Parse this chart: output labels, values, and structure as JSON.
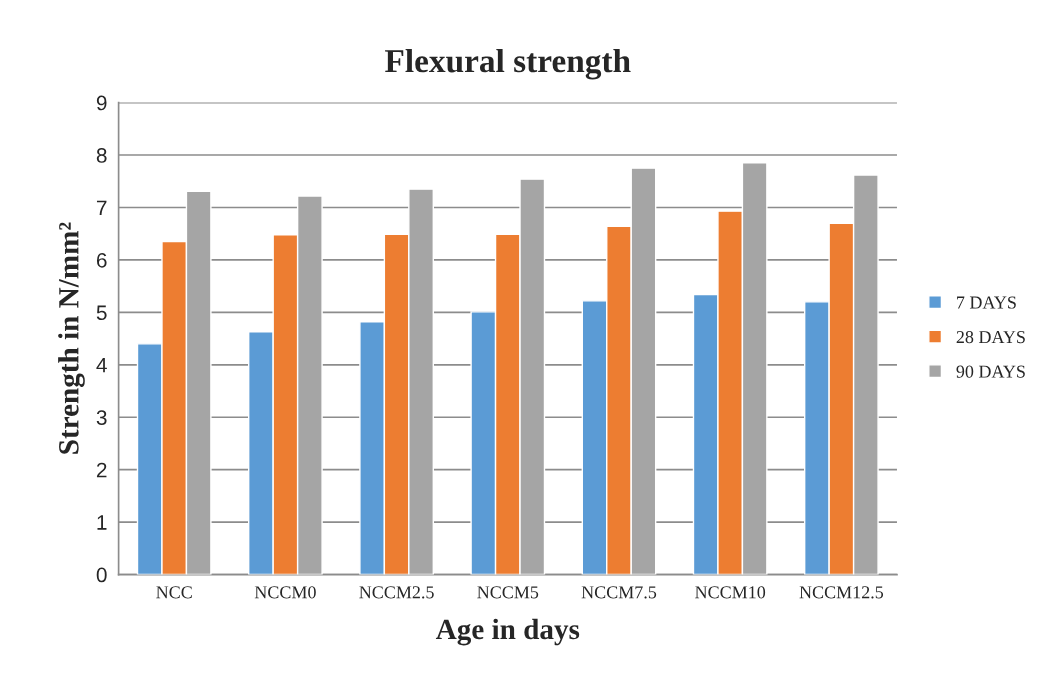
{
  "chart_data": {
    "type": "bar",
    "title": "Flexural strength",
    "xlabel": "Age in days",
    "ylabel": "Strength in N/mm²",
    "categories": [
      "NCC",
      "NCCM0",
      "NCCM2.5",
      "NCCM5",
      "NCCM7.5",
      "NCCM10",
      "NCCM12.5"
    ],
    "series": [
      {
        "name": "7 DAYS",
        "color": "#5b9bd5",
        "values": [
          4.4,
          4.63,
          4.82,
          5.01,
          5.22,
          5.34,
          5.2
        ]
      },
      {
        "name": "28 DAYS",
        "color": "#ed7d31",
        "values": [
          6.35,
          6.48,
          6.49,
          6.49,
          6.64,
          6.93,
          6.7
        ]
      },
      {
        "name": "90 DAYS",
        "color": "#a5a5a5",
        "values": [
          7.31,
          7.22,
          7.35,
          7.54,
          7.75,
          7.85,
          7.62
        ]
      }
    ],
    "ylim": [
      0,
      9
    ],
    "yticks": [
      0,
      1,
      2,
      3,
      4,
      5,
      6,
      7,
      8,
      9
    ],
    "grid": "y",
    "legend": "right"
  }
}
